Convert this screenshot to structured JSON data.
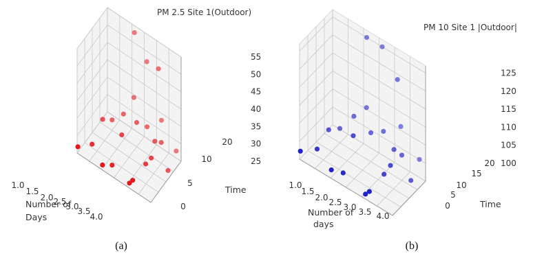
{
  "captions": [
    "(a)",
    "(b)"
  ],
  "chart_data": [
    {
      "type": "scatter",
      "projection": "3d",
      "title": "PM 2.5 Site 1(Outdoor)",
      "xlabel": "Number of\nDays",
      "ylabel": "Time",
      "zlabel": "",
      "xlim": [
        1.0,
        4.0
      ],
      "ylim": [
        0,
        20
      ],
      "zlim": [
        25,
        55
      ],
      "x_ticks": [
        "1.0",
        "1.5",
        "2.0",
        "2.5",
        "3.0",
        "3.5",
        "4.0"
      ],
      "y_ticks": [
        "0",
        "5",
        "10",
        "15",
        "20"
      ],
      "z_ticks": [
        "25",
        "30",
        "35",
        "40",
        "45",
        "50",
        "55"
      ],
      "grid": true,
      "color": "#e3141a",
      "points": [
        {
          "x": 1.0,
          "y": 0.5,
          "z": 26.5
        },
        {
          "x": 1.3,
          "y": 5,
          "z": 26
        },
        {
          "x": 1.3,
          "y": 12,
          "z": 29
        },
        {
          "x": 1.5,
          "y": 15,
          "z": 28
        },
        {
          "x": 2.0,
          "y": 0.5,
          "z": 26
        },
        {
          "x": 2.3,
          "y": 2,
          "z": 26.5
        },
        {
          "x": 1.9,
          "y": 16,
          "z": 31
        },
        {
          "x": 2.2,
          "y": 10,
          "z": 30
        },
        {
          "x": 2.1,
          "y": 20,
          "z": 53
        },
        {
          "x": 2.6,
          "y": 20,
          "z": 47
        },
        {
          "x": 2.2,
          "y": 18,
          "z": 36
        },
        {
          "x": 2.5,
          "y": 15,
          "z": 32
        },
        {
          "x": 2.8,
          "y": 17,
          "z": 31
        },
        {
          "x": 3.1,
          "y": 0.5,
          "z": 26
        },
        {
          "x": 3.2,
          "y": 1,
          "z": 27
        },
        {
          "x": 3.3,
          "y": 8,
          "z": 28
        },
        {
          "x": 3.3,
          "y": 14,
          "z": 31
        },
        {
          "x": 3.2,
          "y": 20,
          "z": 33
        },
        {
          "x": 3.4,
          "y": 10,
          "z": 29
        },
        {
          "x": 3.5,
          "y": 15,
          "z": 31
        },
        {
          "x": 3.2,
          "y": 18,
          "z": 49
        },
        {
          "x": 3.9,
          "y": 13,
          "z": 26
        },
        {
          "x": 3.8,
          "y": 20,
          "z": 27
        }
      ]
    },
    {
      "type": "scatter",
      "projection": "3d",
      "title": "PM 10  Site 1 |Outdoor|",
      "xlabel": "Number of\ndays",
      "ylabel": "Time",
      "zlabel": "",
      "xlim": [
        1.0,
        4.0
      ],
      "ylim": [
        0,
        20
      ],
      "zlim": [
        95,
        127
      ],
      "x_ticks": [
        "1.0",
        "1.5",
        "2.0",
        "2.5",
        "3.0",
        "3.5",
        "4.0"
      ],
      "y_ticks": [
        "0",
        "5",
        "10",
        "15",
        "20"
      ],
      "z_ticks": [
        "100",
        "105",
        "110",
        "115",
        "120",
        "125"
      ],
      "grid": true,
      "color": "#1e1ec8",
      "points": [
        {
          "x": 1.0,
          "y": 0.5,
          "z": 97
        },
        {
          "x": 1.3,
          "y": 5,
          "z": 97
        },
        {
          "x": 1.3,
          "y": 12,
          "z": 99
        },
        {
          "x": 1.5,
          "y": 15,
          "z": 99
        },
        {
          "x": 2.0,
          "y": 0.5,
          "z": 97
        },
        {
          "x": 2.3,
          "y": 2,
          "z": 97
        },
        {
          "x": 1.9,
          "y": 16,
          "z": 104
        },
        {
          "x": 2.2,
          "y": 10,
          "z": 103
        },
        {
          "x": 2.1,
          "y": 20,
          "z": 125
        },
        {
          "x": 2.6,
          "y": 20,
          "z": 125
        },
        {
          "x": 2.2,
          "y": 18,
          "z": 107
        },
        {
          "x": 2.5,
          "y": 15,
          "z": 103
        },
        {
          "x": 2.8,
          "y": 17,
          "z": 104
        },
        {
          "x": 3.1,
          "y": 0.5,
          "z": 96
        },
        {
          "x": 3.2,
          "y": 1,
          "z": 97
        },
        {
          "x": 3.3,
          "y": 8,
          "z": 99
        },
        {
          "x": 3.3,
          "y": 14,
          "z": 103
        },
        {
          "x": 3.2,
          "y": 20,
          "z": 106
        },
        {
          "x": 3.4,
          "y": 10,
          "z": 101
        },
        {
          "x": 3.5,
          "y": 15,
          "z": 102
        },
        {
          "x": 3.2,
          "y": 18,
          "z": 120
        },
        {
          "x": 3.9,
          "y": 13,
          "z": 98
        },
        {
          "x": 3.8,
          "y": 20,
          "z": 100
        }
      ]
    }
  ]
}
